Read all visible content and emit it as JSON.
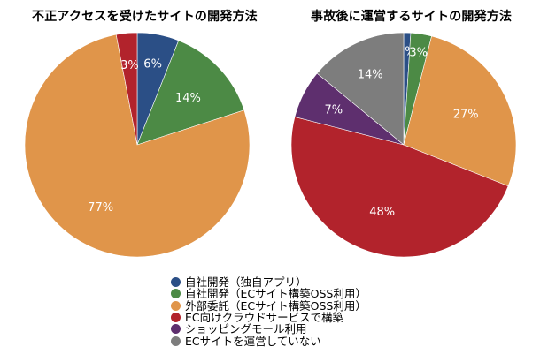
{
  "colors": {
    "自社開発（独自アプリ）": "#2b4f86",
    "自社開発（ECサイト構築OSS利用）": "#4c8a45",
    "外部委託（ECサイト構築OSS利用）": "#e0954a",
    "EC向けクラウドサービスで構築": "#b2232c",
    "ショッピングモール利用": "#5e2f6e",
    "ECサイトを運営していない": "#7d7d7d"
  },
  "legend": [
    "自社開発（独自アプリ）",
    "自社開発（ECサイト構築OSS利用）",
    "外部委託（ECサイト構築OSS利用）",
    "EC向けクラウドサービスで構築",
    "ショッピングモール利用",
    "ECサイトを運営していない"
  ],
  "chart_data": [
    {
      "type": "pie",
      "title": "不正アクセスを受けたサイトの開発方法",
      "slices": [
        {
          "label": "自社開発（独自アプリ）",
          "value": 6,
          "text": "6%"
        },
        {
          "label": "自社開発（ECサイト構築OSS利用）",
          "value": 14,
          "text": "14%"
        },
        {
          "label": "外部委託（ECサイト構築OSS利用）",
          "value": 77,
          "text": "77%"
        },
        {
          "label": "EC向けクラウドサービスで構築",
          "value": 3,
          "text": "3%"
        }
      ]
    },
    {
      "type": "pie",
      "title": "事故後に運営するサイトの開発方法",
      "slices": [
        {
          "label": "自社開発（独自アプリ）",
          "value": 1,
          "text": "1%"
        },
        {
          "label": "自社開発（ECサイト構築OSS利用）",
          "value": 3,
          "text": "3%"
        },
        {
          "label": "外部委託（ECサイト構築OSS利用）",
          "value": 27,
          "text": "27%"
        },
        {
          "label": "EC向けクラウドサービスで構築",
          "value": 48,
          "text": "48%"
        },
        {
          "label": "ショッピングモール利用",
          "value": 7,
          "text": "7%"
        },
        {
          "label": "ECサイトを運営していない",
          "value": 14,
          "text": "14%"
        }
      ]
    }
  ]
}
